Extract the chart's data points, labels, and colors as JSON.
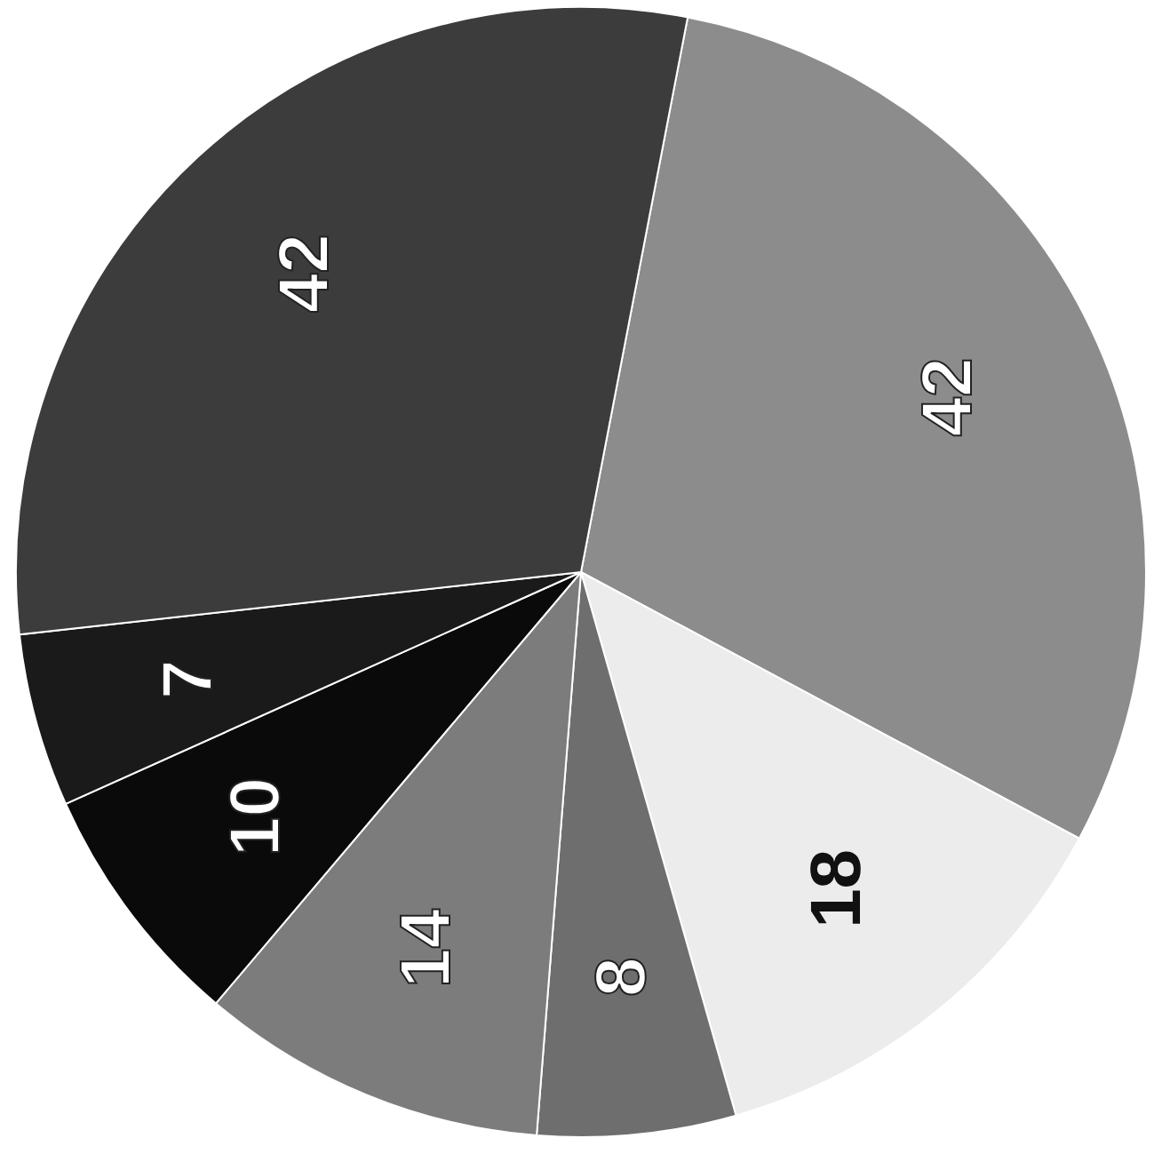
{
  "chart_data": {
    "type": "pie",
    "categories": [
      null,
      null,
      null,
      null,
      null,
      null,
      null
    ],
    "values": [
      42,
      18,
      8,
      14,
      10,
      7,
      42
    ],
    "colors": [
      "#8c8c8c",
      "#ececec",
      "#6e6e6e",
      "#7c7c7c",
      "#0a0a0a",
      "#1a1a1a",
      "#3c3c3c"
    ],
    "data_labels": true
  }
}
